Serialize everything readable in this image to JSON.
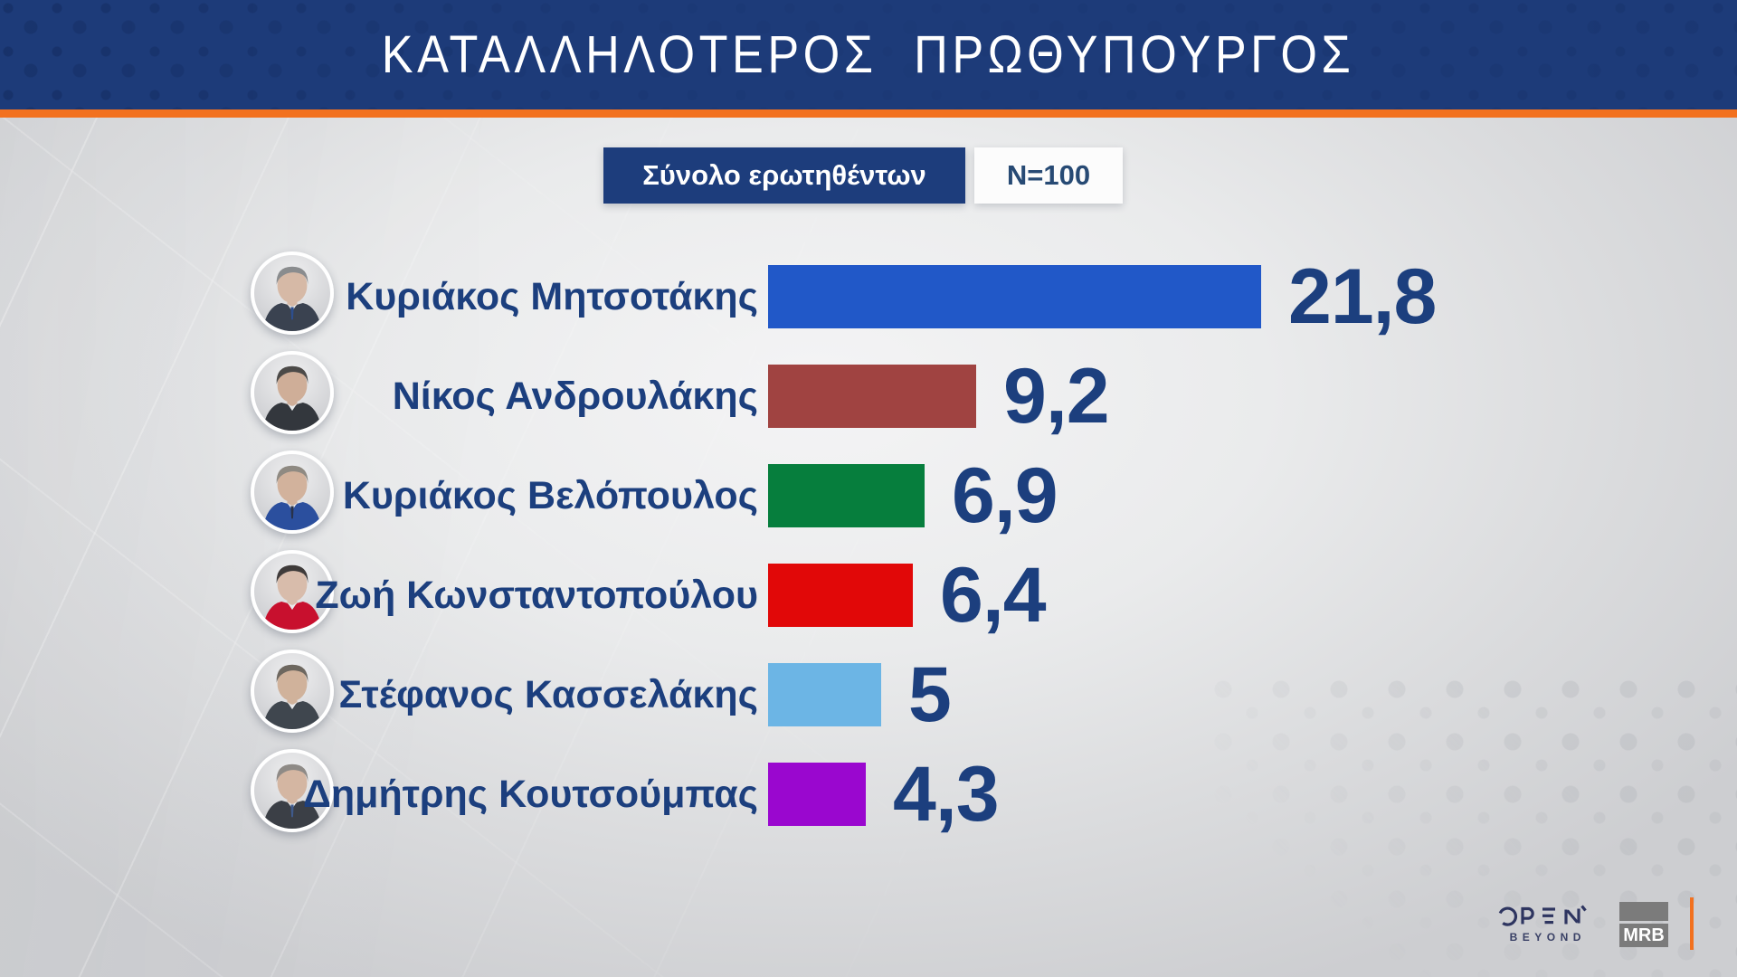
{
  "header": {
    "title": "ΚΑΤΑΛΛΗΛΟΤΕΡΟΣ ΠΡΩΘΥΠΟΥΡΓΟΣ"
  },
  "subheader": {
    "sample_label": "Σύνολο ερωτηθέντων",
    "sample_size": "N=100"
  },
  "colors": {
    "header_bg": "#1d3b79",
    "accent_orange": "#f2711f",
    "text_navy": "#1c3f7e",
    "pill_bg": "#1d3d7c"
  },
  "chart_data": {
    "type": "bar",
    "orientation": "horizontal",
    "title": "ΚΑΤΑΛΛΗΛΟΤΕΡΟΣ ΠΡΩΘΥΠΟΥΡΓΟΣ",
    "subtitle": "Σύνολο ερωτηθέντων",
    "sample": "N=100",
    "decimal_separator": ",",
    "categories": [
      "Κυριάκος Μητσοτάκης",
      "Νίκος Ανδρουλάκης",
      "Κυριάκος Βελόπουλος",
      "Ζωή Κωνσταντοπούλου",
      "Στέφανος Κασσελάκης",
      "Δημήτρης Κουτσούμπας"
    ],
    "values": [
      21.8,
      9.2,
      6.9,
      6.4,
      5,
      4.3
    ],
    "xlim": [
      0,
      25
    ],
    "grid": false,
    "legend": false,
    "rows": [
      {
        "name": "Κυριάκος Μητσοτάκης",
        "value": 21.8,
        "label": "21,8",
        "color": "#2158c8",
        "avatar": {
          "hair": "#8a8c8e",
          "skin": "#d6b9a6",
          "clothes": "#3a4250",
          "tie": "#2d4e8e"
        }
      },
      {
        "name": "Νίκος Ανδρουλάκης",
        "value": 9.2,
        "label": "9,2",
        "color": "#a04341",
        "avatar": {
          "hair": "#4c4a48",
          "skin": "#cfae98",
          "clothes": "#33373d",
          "tie": "transparent"
        }
      },
      {
        "name": "Κυριάκος Βελόπουλος",
        "value": 6.9,
        "label": "6,9",
        "color": "#067e3d",
        "avatar": {
          "hair": "#8f8a82",
          "skin": "#d2b29c",
          "clothes": "#2b4f9e",
          "tie": "#28324a"
        }
      },
      {
        "name": "Ζωή Κωνσταντοπούλου",
        "value": 6.4,
        "label": "6,4",
        "color": "#e10808",
        "avatar": {
          "hair": "#3f3b3a",
          "skin": "#d8bcab",
          "clothes": "#c8102e",
          "tie": "transparent"
        }
      },
      {
        "name": "Στέφανος Κασσελάκης",
        "value": 5,
        "label": "5",
        "color": "#6cb5e5",
        "avatar": {
          "hair": "#6d675f",
          "skin": "#d0b29b",
          "clothes": "#3f464e",
          "tie": "transparent"
        }
      },
      {
        "name": "Δημήτρης Κουτσούμπας",
        "value": 4.3,
        "label": "4,3",
        "color": "#9a07cf",
        "avatar": {
          "hair": "#8e8a86",
          "skin": "#d4b6a2",
          "clothes": "#3b3f46",
          "tie": "#3f5a8c"
        }
      }
    ]
  },
  "footer": {
    "open_logo": "OPEN",
    "open_tagline": "BEYOND",
    "mrb_logo": "MRB"
  }
}
